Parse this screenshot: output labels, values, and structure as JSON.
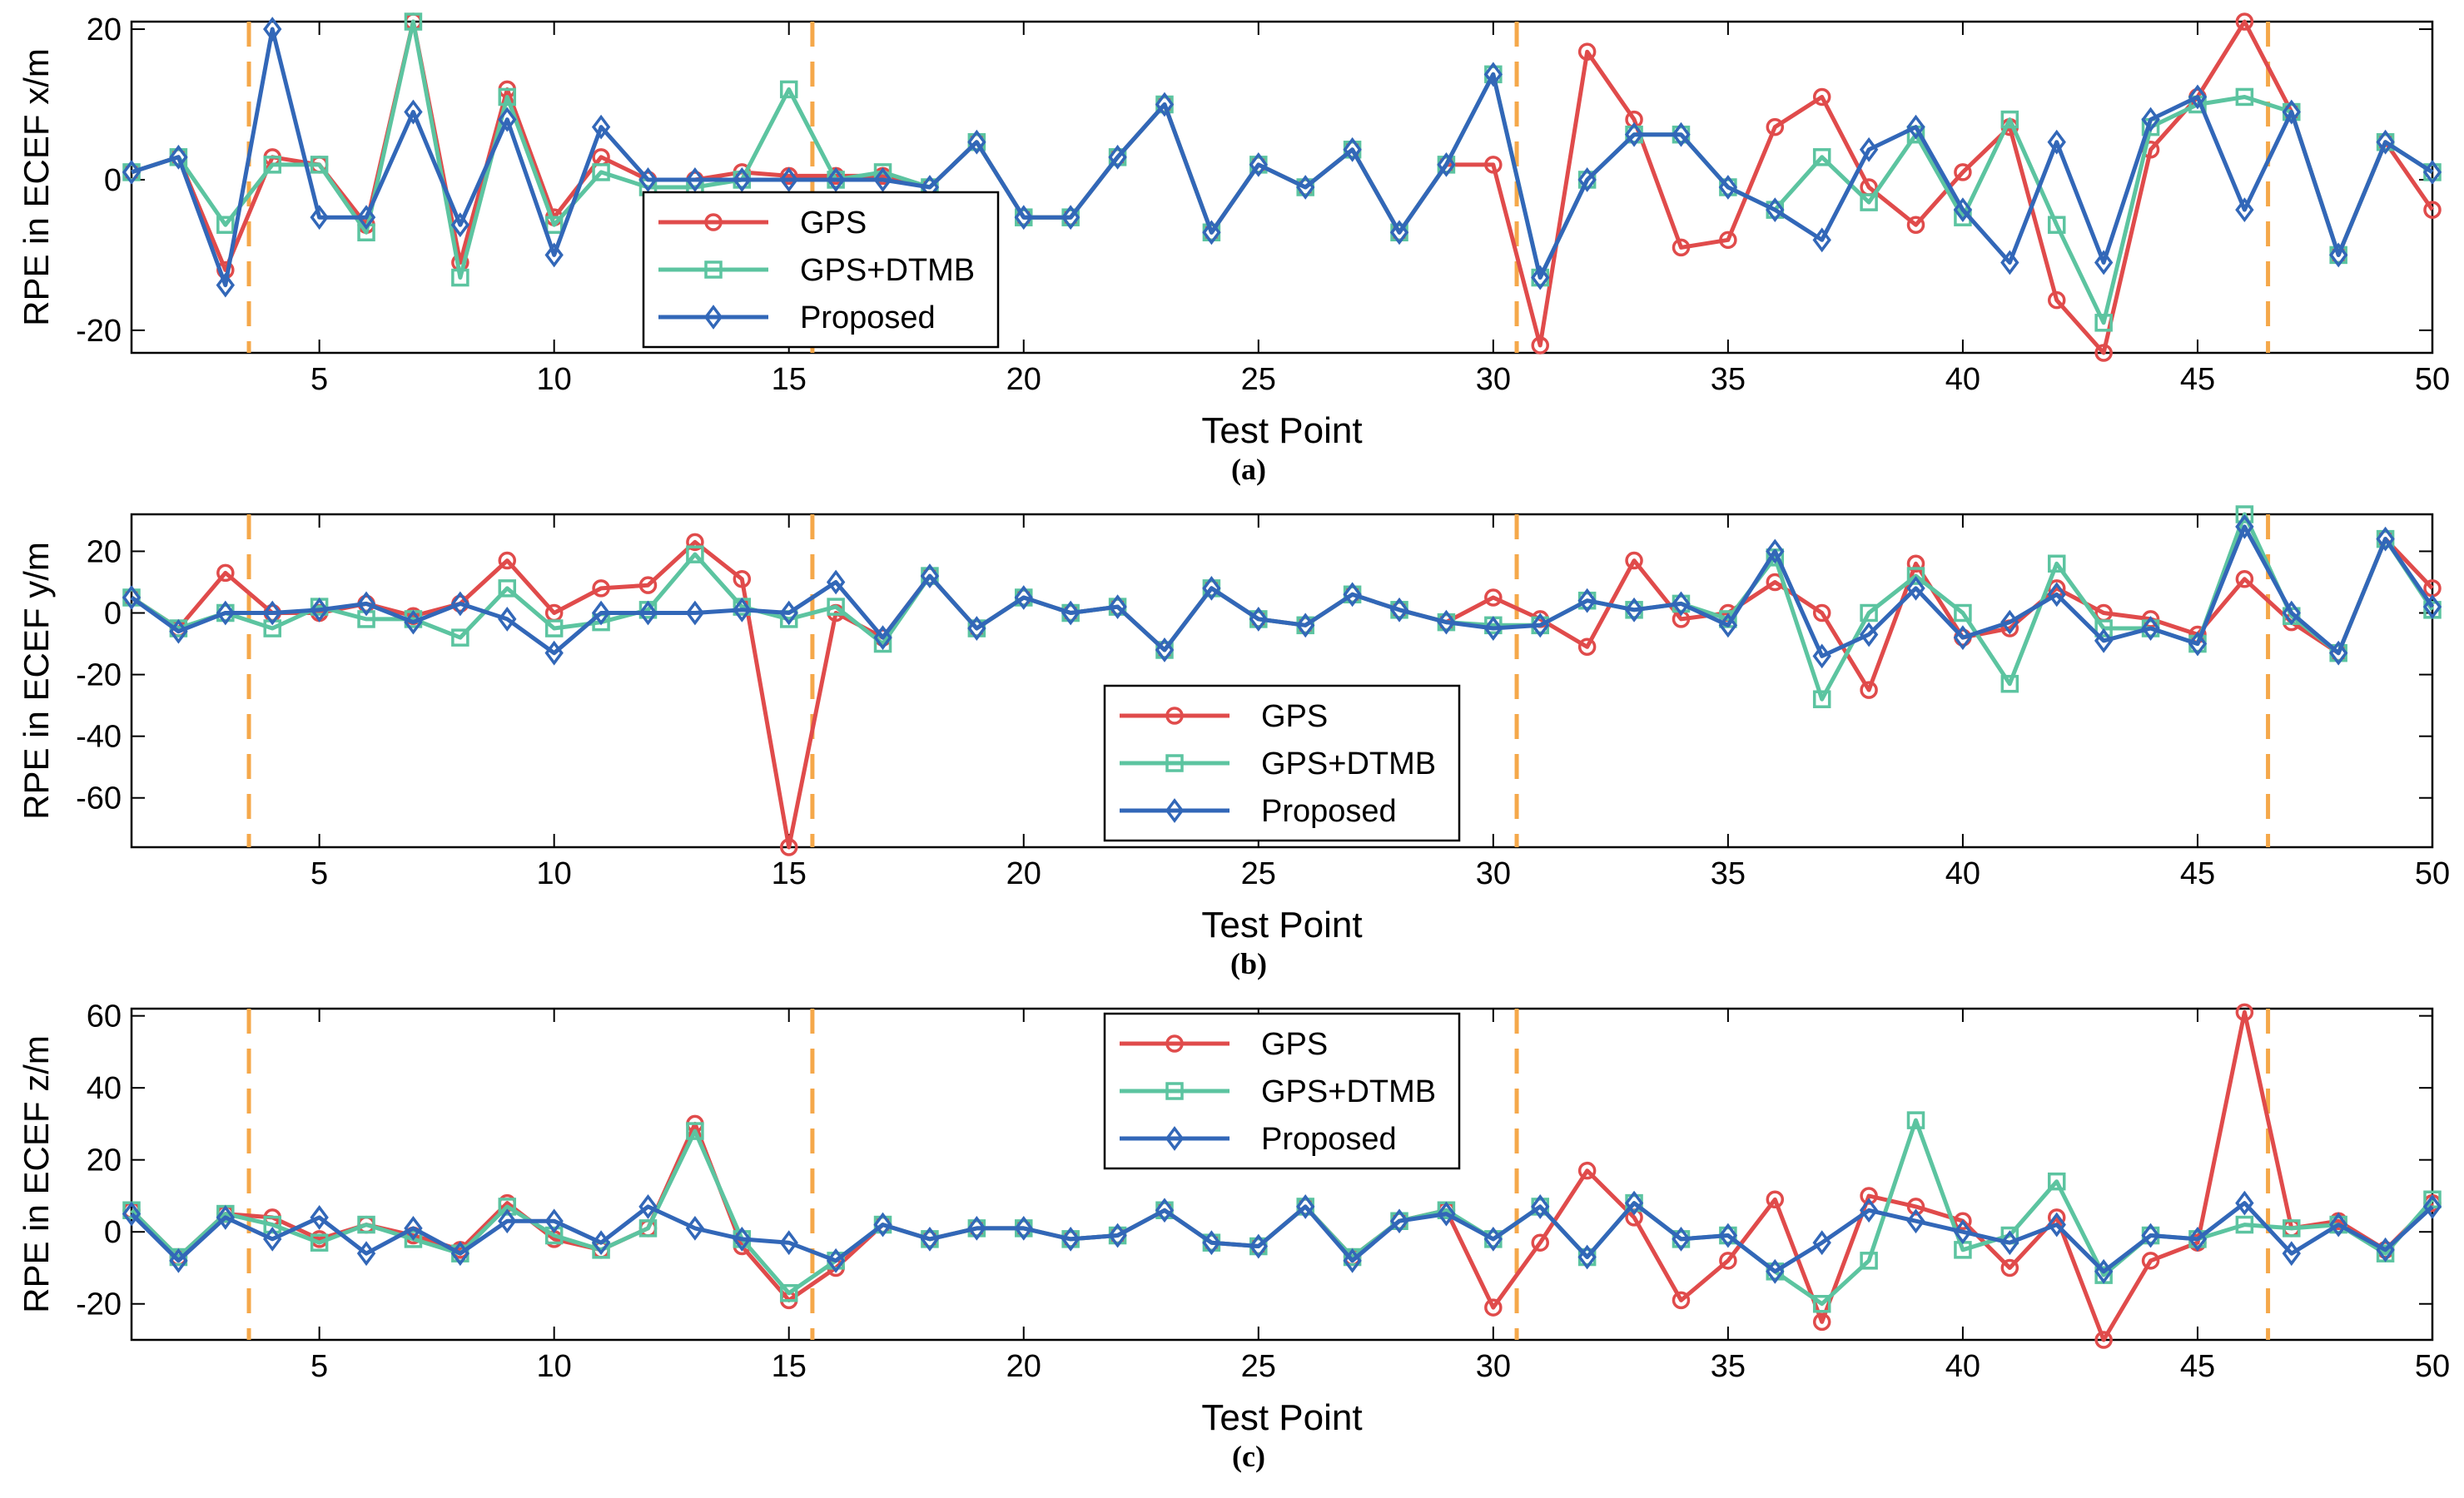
{
  "colors": {
    "gps": "#e04b4b",
    "gps_dtmb": "#5cc4a0",
    "proposed": "#3267b8",
    "divider": "#f5a84a",
    "axis": "#000000"
  },
  "chart_data": [
    {
      "type": "line",
      "panel_label": "(a)",
      "xlabel": "Test Point",
      "ylabel": "RPE in ECEF x/m",
      "xlim": [
        1,
        50
      ],
      "ylim": [
        -23,
        21
      ],
      "xticks": [
        5,
        10,
        15,
        20,
        25,
        30,
        35,
        40,
        45,
        50
      ],
      "yticks": [
        -20,
        0,
        20
      ],
      "vlines": [
        3.5,
        15.5,
        30.5,
        46.5
      ],
      "legend_position": "center-bottom",
      "x": [
        1,
        2,
        3,
        4,
        5,
        6,
        7,
        8,
        9,
        10,
        11,
        12,
        13,
        14,
        15,
        16,
        17,
        18,
        19,
        20,
        21,
        22,
        23,
        24,
        25,
        26,
        27,
        28,
        29,
        30,
        31,
        32,
        33,
        34,
        35,
        36,
        37,
        38,
        39,
        40,
        41,
        42,
        43,
        44,
        45,
        46,
        47,
        48,
        49,
        50
      ],
      "series": [
        {
          "name": "GPS",
          "marker": "circle",
          "values": [
            1,
            3,
            -12,
            3,
            2,
            -6,
            21,
            -11,
            12,
            -5,
            3,
            0,
            0,
            1,
            0.5,
            0.5,
            0.5,
            -1,
            5,
            -5,
            -5,
            3,
            10,
            -7,
            2,
            -1,
            4,
            -7,
            2,
            2,
            -22,
            17,
            8,
            -9,
            -8,
            7,
            11,
            -1,
            -6,
            1,
            7,
            -16,
            -23,
            4,
            11,
            21,
            9,
            -10,
            5,
            -4
          ]
        },
        {
          "name": "GPS+DTMB",
          "marker": "square",
          "values": [
            1,
            3,
            -6,
            2,
            2,
            -7,
            21,
            -13,
            11,
            -6,
            1,
            -1,
            -1,
            0,
            12,
            0,
            1,
            -1,
            5,
            -5,
            -5,
            3,
            10,
            -7,
            2,
            -1,
            4,
            -7,
            2,
            14,
            -13,
            0,
            6,
            6,
            -1,
            -4,
            3,
            -3,
            6,
            -5,
            8,
            -6,
            -19,
            7,
            10,
            11,
            9,
            -10,
            5,
            1
          ]
        },
        {
          "name": "Proposed",
          "marker": "diamond",
          "values": [
            1,
            3,
            -14,
            20,
            -5,
            -5,
            9,
            -6,
            8,
            -10,
            7,
            0,
            0,
            0,
            0,
            0,
            0,
            -1,
            5,
            -5,
            -5,
            3,
            10,
            -7,
            2,
            -1,
            4,
            -7,
            2,
            14,
            -13,
            0,
            6,
            6,
            -1,
            -4,
            -8,
            4,
            7,
            -4,
            -11,
            5,
            -11,
            8,
            11,
            -4,
            9,
            -10,
            5,
            1
          ]
        }
      ]
    },
    {
      "type": "line",
      "panel_label": "(b)",
      "xlabel": "Test Point",
      "ylabel": "RPE in ECEF y/m",
      "xlim": [
        1,
        50
      ],
      "ylim": [
        -76,
        32
      ],
      "xticks": [
        5,
        10,
        15,
        20,
        25,
        30,
        35,
        40,
        45,
        50
      ],
      "yticks": [
        -60,
        -40,
        -20,
        0,
        20
      ],
      "vlines": [
        3.5,
        15.5,
        30.5,
        46.5
      ],
      "legend_position": "center-bottom",
      "x": [
        1,
        2,
        3,
        4,
        5,
        6,
        7,
        8,
        9,
        10,
        11,
        12,
        13,
        14,
        15,
        16,
        17,
        18,
        19,
        20,
        21,
        22,
        23,
        24,
        25,
        26,
        27,
        28,
        29,
        30,
        31,
        32,
        33,
        34,
        35,
        36,
        37,
        38,
        39,
        40,
        41,
        42,
        43,
        44,
        45,
        46,
        47,
        48,
        49,
        50
      ],
      "series": [
        {
          "name": "GPS",
          "marker": "circle",
          "values": [
            5,
            -5,
            13,
            0,
            0,
            3,
            -1,
            3,
            17,
            0,
            8,
            9,
            23,
            11,
            -76,
            0,
            -8,
            12,
            -5,
            5,
            0,
            2,
            -12,
            8,
            -2,
            -4,
            6,
            1,
            -3,
            5,
            -2,
            -11,
            17,
            -2,
            0,
            10,
            0,
            -25,
            16,
            -8,
            -5,
            8,
            0,
            -2,
            -7,
            11,
            -3,
            -13,
            24,
            8
          ]
        },
        {
          "name": "GPS+DTMB",
          "marker": "square",
          "values": [
            5,
            -5,
            0,
            -5,
            2,
            -2,
            -2,
            -8,
            8,
            -5,
            -3,
            1,
            19,
            2,
            -2,
            2,
            -10,
            12,
            -5,
            5,
            0,
            2,
            -12,
            8,
            -2,
            -4,
            6,
            1,
            -3,
            -4,
            -4,
            4,
            1,
            3,
            -2,
            18,
            -28,
            0,
            12,
            0,
            -23,
            16,
            -5,
            -5,
            -10,
            32,
            -1,
            -13,
            24,
            1
          ]
        },
        {
          "name": "Proposed",
          "marker": "diamond",
          "values": [
            5,
            -6,
            0,
            0,
            1,
            3,
            -3,
            3,
            -2,
            -13,
            0,
            0,
            0,
            1,
            0,
            10,
            -8,
            12,
            -5,
            5,
            0,
            2,
            -12,
            8,
            -2,
            -4,
            6,
            1,
            -3,
            -5,
            -4,
            4,
            1,
            3,
            -4,
            20,
            -14,
            -7,
            8,
            -8,
            -3,
            6,
            -9,
            -5,
            -10,
            28,
            0,
            -13,
            24,
            2
          ]
        }
      ]
    },
    {
      "type": "line",
      "panel_label": "(c)",
      "xlabel": "Test Point",
      "ylabel": "RPE in ECEF z/m",
      "xlim": [
        1,
        50
      ],
      "ylim": [
        -30,
        62
      ],
      "xticks": [
        5,
        10,
        15,
        20,
        25,
        30,
        35,
        40,
        45,
        50
      ],
      "yticks": [
        -20,
        0,
        20,
        40,
        60
      ],
      "vlines": [
        3.5,
        15.5,
        30.5,
        46.5
      ],
      "legend_position": "top-center",
      "x": [
        1,
        2,
        3,
        4,
        5,
        6,
        7,
        8,
        9,
        10,
        11,
        12,
        13,
        14,
        15,
        16,
        17,
        18,
        19,
        20,
        21,
        22,
        23,
        24,
        25,
        26,
        27,
        28,
        29,
        30,
        31,
        32,
        33,
        34,
        35,
        36,
        37,
        38,
        39,
        40,
        41,
        42,
        43,
        44,
        45,
        46,
        47,
        48,
        49,
        50
      ],
      "series": [
        {
          "name": "GPS",
          "marker": "circle",
          "values": [
            6,
            -7,
            5,
            4,
            -2,
            2,
            -1,
            -5,
            8,
            -2,
            -5,
            1,
            30,
            -4,
            -19,
            -10,
            2,
            -2,
            1,
            1,
            -2,
            -1,
            6,
            -3,
            -4,
            7,
            -7,
            3,
            6,
            -21,
            -3,
            17,
            4,
            -19,
            -8,
            9,
            -25,
            10,
            7,
            3,
            -10,
            4,
            -30,
            -8,
            -3,
            61,
            1,
            3,
            -5,
            8
          ]
        },
        {
          "name": "GPS+DTMB",
          "marker": "square",
          "values": [
            6,
            -7,
            5,
            2,
            -3,
            2,
            -2,
            -6,
            7,
            -1,
            -5,
            1,
            28,
            -2,
            -17,
            -8,
            2,
            -2,
            1,
            1,
            -2,
            -1,
            6,
            -3,
            -4,
            7,
            -7,
            3,
            6,
            -2,
            7,
            -7,
            8,
            -2,
            -1,
            -11,
            -20,
            -8,
            31,
            -5,
            -1,
            14,
            -12,
            -1,
            -2,
            2,
            1,
            2,
            -6,
            9
          ]
        },
        {
          "name": "Proposed",
          "marker": "diamond",
          "values": [
            5,
            -8,
            4,
            -2,
            4,
            -6,
            1,
            -6,
            3,
            3,
            -3,
            7,
            1,
            -2,
            -3,
            -8,
            2,
            -2,
            1,
            1,
            -2,
            -1,
            6,
            -3,
            -4,
            7,
            -8,
            3,
            5,
            -2,
            7,
            -7,
            8,
            -2,
            -1,
            -11,
            -3,
            6,
            3,
            0,
            -3,
            2,
            -11,
            -1,
            -2,
            8,
            -6,
            2,
            -5,
            7
          ]
        }
      ]
    }
  ]
}
